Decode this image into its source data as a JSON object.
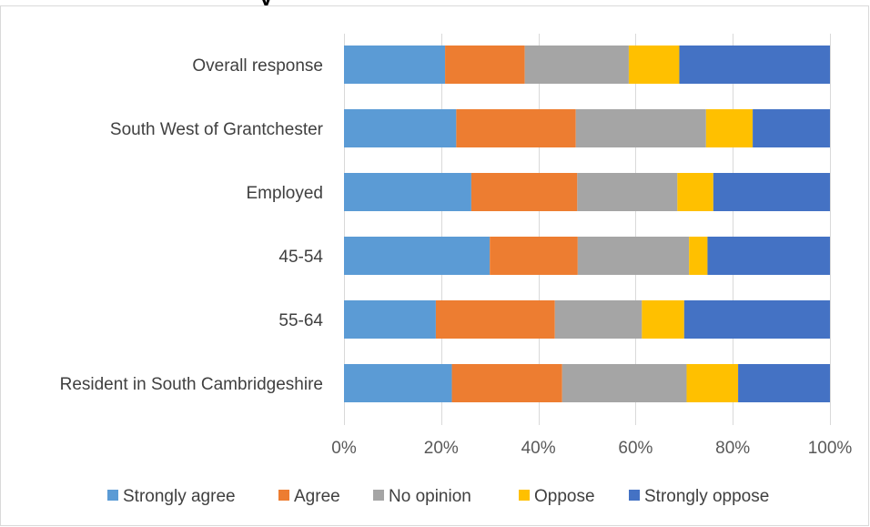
{
  "title_fragment": "y",
  "colors": {
    "Strongly agree": "#5b9bd5",
    "Agree": "#ed7d31",
    "No opinion": "#a5a5a5",
    "Oppose": "#ffc000",
    "Strongly oppose": "#4472c4",
    "grid": "#d9d9d9"
  },
  "chart_data": {
    "type": "bar",
    "orientation": "horizontal",
    "stacked": "100%",
    "categories": [
      "Overall response",
      "South West of Grantchester",
      "Employed",
      "45-54",
      "55-64",
      "Resident in South Cambridgeshire"
    ],
    "series": [
      {
        "name": "Strongly agree",
        "values": [
          20.8,
          23.1,
          26.2,
          30.0,
          18.9,
          22.2
        ]
      },
      {
        "name": "Agree",
        "values": [
          16.4,
          24.6,
          21.8,
          18.1,
          24.5,
          22.7
        ]
      },
      {
        "name": "No opinion",
        "values": [
          21.4,
          26.8,
          20.6,
          22.9,
          17.9,
          25.6
        ]
      },
      {
        "name": "Oppose",
        "values": [
          10.4,
          9.6,
          7.4,
          3.8,
          8.7,
          10.6
        ]
      },
      {
        "name": "Strongly oppose",
        "values": [
          31.0,
          15.9,
          24.0,
          25.2,
          30.0,
          18.9
        ]
      }
    ],
    "xlim": [
      0,
      100
    ],
    "x_ticks": [
      "0%",
      "20%",
      "40%",
      "60%",
      "80%",
      "100%"
    ],
    "grid": "vertical",
    "legend_position": "bottom"
  }
}
